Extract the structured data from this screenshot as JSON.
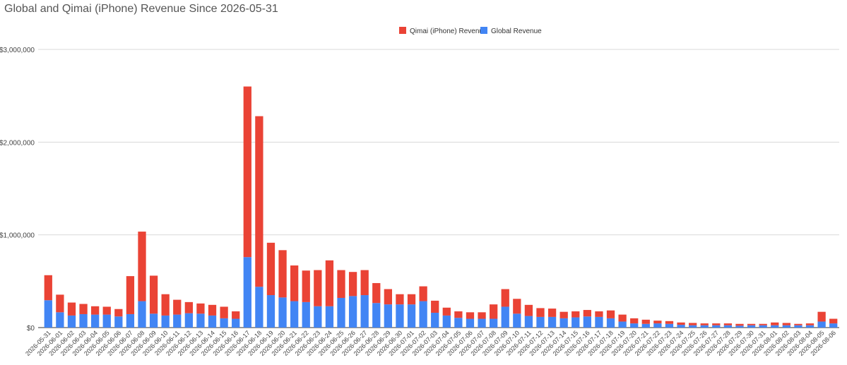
{
  "chart_data": {
    "type": "bar",
    "stacked": true,
    "title": "Global and Qimai (iPhone) Revenue Since 2026-05-31",
    "xlabel": "",
    "ylabel": "",
    "ylim": [
      0,
      3000000
    ],
    "yticks": [
      {
        "value": 0,
        "label": "$0"
      },
      {
        "value": 1000000,
        "label": "$1,000,000"
      },
      {
        "value": 2000000,
        "label": "$2,000,000"
      },
      {
        "value": 3000000,
        "label": "$3,000,000"
      }
    ],
    "grid": true,
    "legend_position": "top-center",
    "categories": [
      "2026-05-31",
      "2026-06-01",
      "2026-06-02",
      "2026-06-03",
      "2026-06-04",
      "2026-06-05",
      "2026-06-06",
      "2026-06-07",
      "2026-06-08",
      "2026-06-09",
      "2026-06-10",
      "2026-06-11",
      "2026-06-12",
      "2026-06-13",
      "2026-06-14",
      "2026-06-15",
      "2026-06-16",
      "2026-06-17",
      "2026-06-18",
      "2026-06-19",
      "2026-06-20",
      "2026-06-21",
      "2026-06-22",
      "2026-06-23",
      "2026-06-24",
      "2026-06-25",
      "2026-06-26",
      "2026-06-27",
      "2026-06-28",
      "2026-06-29",
      "2026-06-30",
      "2026-07-01",
      "2026-07-02",
      "2026-07-03",
      "2026-07-04",
      "2026-07-05",
      "2026-07-06",
      "2026-07-07",
      "2026-07-08",
      "2026-07-09",
      "2026-07-10",
      "2026-07-11",
      "2026-07-12",
      "2026-07-13",
      "2026-07-14",
      "2026-07-15",
      "2026-07-16",
      "2026-07-17",
      "2026-07-18",
      "2026-07-19",
      "2026-07-20",
      "2026-07-21",
      "2026-07-22",
      "2026-07-23",
      "2026-07-24",
      "2026-07-25",
      "2026-07-26",
      "2026-07-27",
      "2026-07-28",
      "2026-07-29",
      "2026-07-30",
      "2026-07-31",
      "2026-08-01",
      "2026-08-02",
      "2026-08-03",
      "2026-08-04",
      "2026-08-05",
      "2026-08-06"
    ],
    "series": [
      {
        "name": "Global Revenue",
        "color": "#4285f4",
        "values": [
          295000,
          165000,
          130000,
          145000,
          140000,
          140000,
          120000,
          145000,
          285000,
          150000,
          130000,
          140000,
          155000,
          150000,
          130000,
          100000,
          95000,
          760000,
          440000,
          350000,
          325000,
          285000,
          275000,
          230000,
          230000,
          320000,
          340000,
          350000,
          265000,
          250000,
          250000,
          250000,
          285000,
          160000,
          130000,
          105000,
          95000,
          95000,
          95000,
          225000,
          150000,
          125000,
          115000,
          115000,
          100000,
          110000,
          120000,
          115000,
          100000,
          65000,
          45000,
          40000,
          45000,
          40000,
          30000,
          25000,
          25000,
          25000,
          25000,
          20000,
          25000,
          25000,
          25000,
          25000,
          25000,
          25000,
          65000,
          45000
        ]
      },
      {
        "name": "Qimai (iPhone) Revenue",
        "color": "#ea4335",
        "values": [
          270000,
          190000,
          140000,
          110000,
          90000,
          85000,
          80000,
          410000,
          750000,
          410000,
          230000,
          160000,
          120000,
          110000,
          115000,
          125000,
          80000,
          1840000,
          1840000,
          565000,
          510000,
          385000,
          340000,
          390000,
          495000,
          300000,
          260000,
          270000,
          215000,
          165000,
          110000,
          110000,
          160000,
          130000,
          85000,
          70000,
          70000,
          70000,
          155000,
          190000,
          160000,
          120000,
          95000,
          90000,
          70000,
          65000,
          70000,
          60000,
          85000,
          75000,
          55000,
          45000,
          30000,
          30000,
          25000,
          25000,
          20000,
          20000,
          20000,
          20000,
          15000,
          15000,
          30000,
          25000,
          15000,
          20000,
          105000,
          50000
        ]
      }
    ]
  }
}
